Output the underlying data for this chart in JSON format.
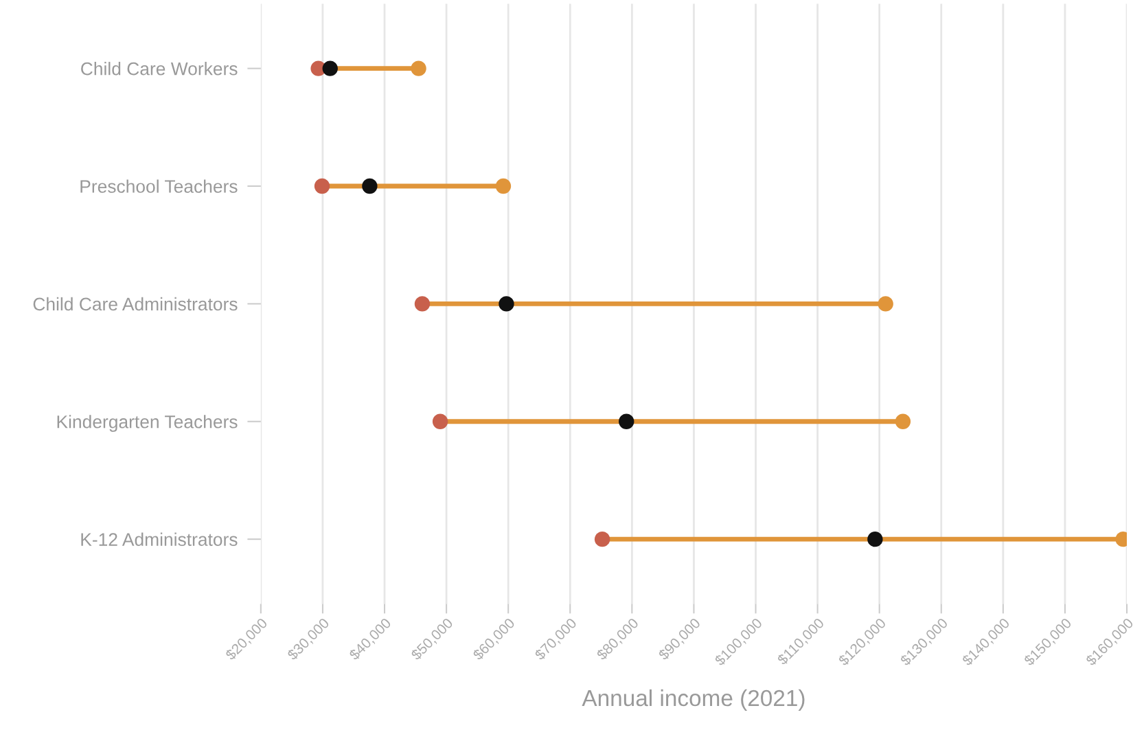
{
  "chart_data": {
    "type": "scatter",
    "orientation": "horizontal",
    "xlabel": "Annual income (2021)",
    "categories": [
      "Child Care Workers",
      "Preschool Teachers",
      "Child Care Administrators",
      "Kindergarten Teachers",
      "K-12 Administrators"
    ],
    "series": [
      {
        "color": "#c8604c",
        "values": [
          29300,
          29900,
          46100,
          49000,
          75200
        ]
      },
      {
        "color": "#111111",
        "values": [
          31200,
          37600,
          59700,
          79100,
          119300
        ]
      },
      {
        "color": "#e0953a",
        "values": [
          45500,
          59200,
          121000,
          123800,
          159400
        ]
      }
    ],
    "xlim": [
      20000,
      160000
    ],
    "xticks": [
      {
        "value": 20000,
        "label": "$20,000"
      },
      {
        "value": 30000,
        "label": "$30,000"
      },
      {
        "value": 40000,
        "label": "$40,000"
      },
      {
        "value": 50000,
        "label": "$50,000"
      },
      {
        "value": 60000,
        "label": "$60,000"
      },
      {
        "value": 70000,
        "label": "$70,000"
      },
      {
        "value": 80000,
        "label": "$80,000"
      },
      {
        "value": 90000,
        "label": "$90,000"
      },
      {
        "value": 100000,
        "label": "$100,000"
      },
      {
        "value": 110000,
        "label": "$110,000"
      },
      {
        "value": 120000,
        "label": "$120,000"
      },
      {
        "value": 130000,
        "label": "$130,000"
      },
      {
        "value": 140000,
        "label": "$140,000"
      },
      {
        "value": 150000,
        "label": "$150,000"
      },
      {
        "value": 160000,
        "label": "$160,000"
      }
    ],
    "grid": "x",
    "marker": "circle",
    "line_style": "solid"
  }
}
